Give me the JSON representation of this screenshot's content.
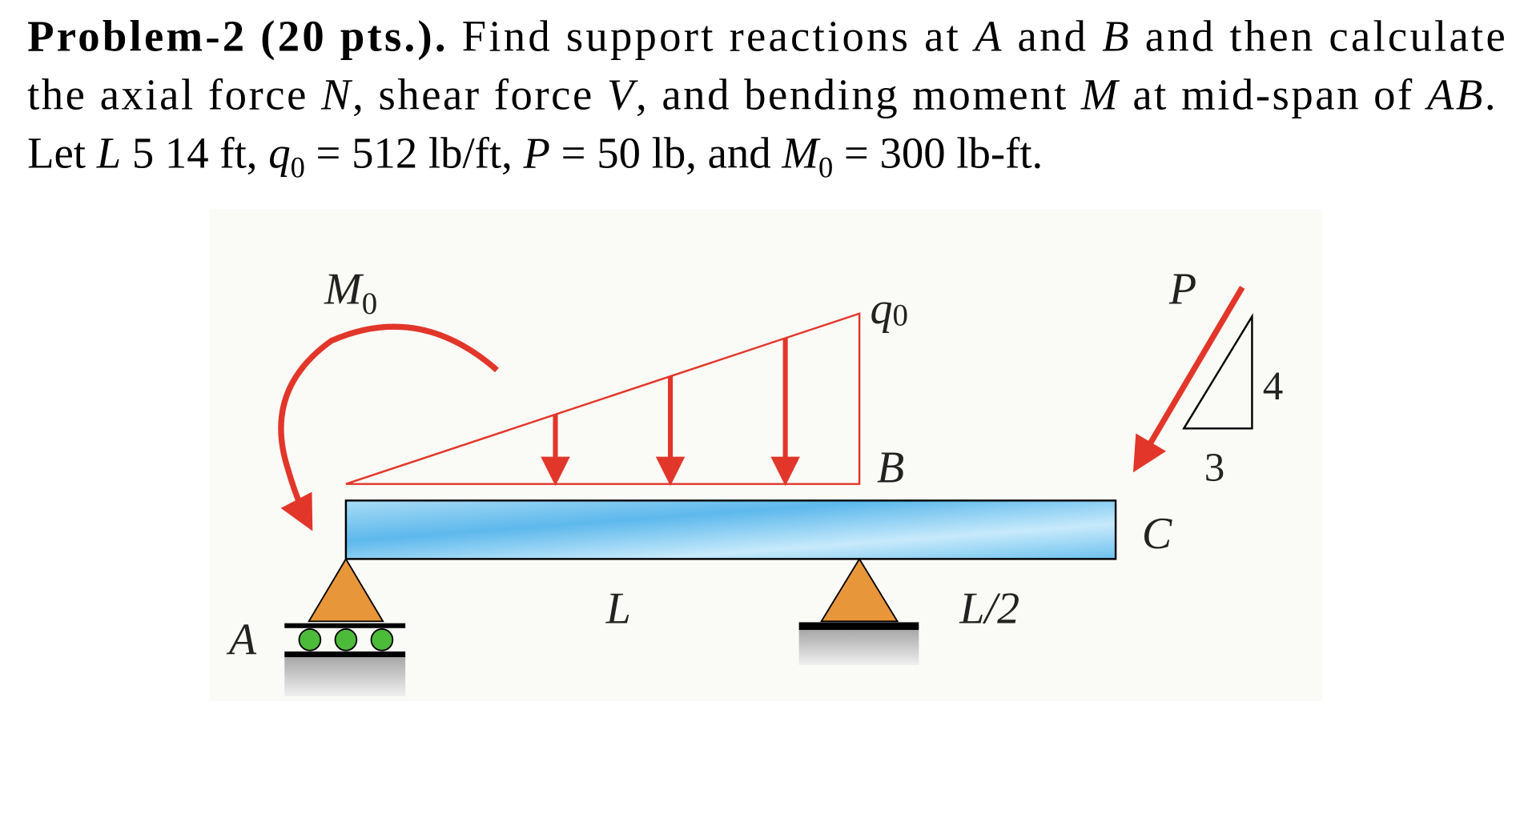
{
  "problem": {
    "line1": [
      "Problem-2 (20 pts.).",
      " Find support reactions at ",
      "A",
      " and ",
      "B",
      " and then calculate"
    ],
    "line2": [
      "the axial force ",
      "N",
      ", shear force ",
      "V",
      ", and bending moment ",
      "M",
      " at mid-span of ",
      "AB",
      "."
    ],
    "line3": [
      "Let ",
      "L",
      " 5 14 ft, ",
      "q",
      "0",
      " = 512 lb/ft, ",
      "P",
      " = 50 lb, and ",
      "M",
      "0",
      " = 300 lb-ft."
    ]
  },
  "diagram": {
    "labels": {
      "moment": "M",
      "moment_sub": "0",
      "load": "q",
      "load_sub": "0",
      "force": "P",
      "slope_rise": "4",
      "slope_run": "3",
      "point_b": "B",
      "point_c": "C",
      "span_ab": "L",
      "span_bc": "L/2",
      "point_a": "A"
    }
  }
}
